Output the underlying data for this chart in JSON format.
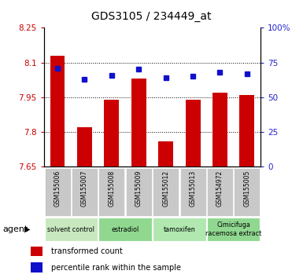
{
  "title": "GDS3105 / 234449_at",
  "samples": [
    "GSM155006",
    "GSM155007",
    "GSM155008",
    "GSM155009",
    "GSM155012",
    "GSM155013",
    "GSM154972",
    "GSM155005"
  ],
  "bar_values": [
    8.13,
    7.82,
    7.94,
    8.03,
    7.76,
    7.94,
    7.97,
    7.96
  ],
  "dot_values": [
    71,
    63,
    66,
    70,
    64,
    65,
    68,
    67
  ],
  "groups": [
    {
      "label": "solvent control",
      "start": 0,
      "end": 2
    },
    {
      "label": "estradiol",
      "start": 2,
      "end": 4
    },
    {
      "label": "tamoxifen",
      "start": 4,
      "end": 6
    },
    {
      "label": "Cimicifuga\nracemosa extract",
      "start": 6,
      "end": 8
    }
  ],
  "group_colors": [
    "#c8e8c0",
    "#90d890",
    "#b0e8b0",
    "#90d890"
  ],
  "ylim_left": [
    7.65,
    8.25
  ],
  "ylim_right": [
    0,
    100
  ],
  "yticks_left": [
    7.65,
    7.8,
    7.95,
    8.1,
    8.25
  ],
  "yticks_right": [
    0,
    25,
    50,
    75,
    100
  ],
  "ytick_labels_left": [
    "7.65",
    "7.8",
    "7.95",
    "8.1",
    "8.25"
  ],
  "ytick_labels_right": [
    "0",
    "25",
    "50",
    "75",
    "100%"
  ],
  "bar_color": "#cc0000",
  "dot_color": "#1010cc",
  "bar_width": 0.55,
  "left_tick_color": "#cc0000",
  "right_tick_color": "#2222cc",
  "agent_label": "agent",
  "legend_bar_label": "transformed count",
  "legend_dot_label": "percentile rank within the sample",
  "bg_plot": "#ffffff",
  "bg_sample_row": "#c8c8c8",
  "grid_dotted_at": [
    7.8,
    7.95,
    8.1
  ]
}
